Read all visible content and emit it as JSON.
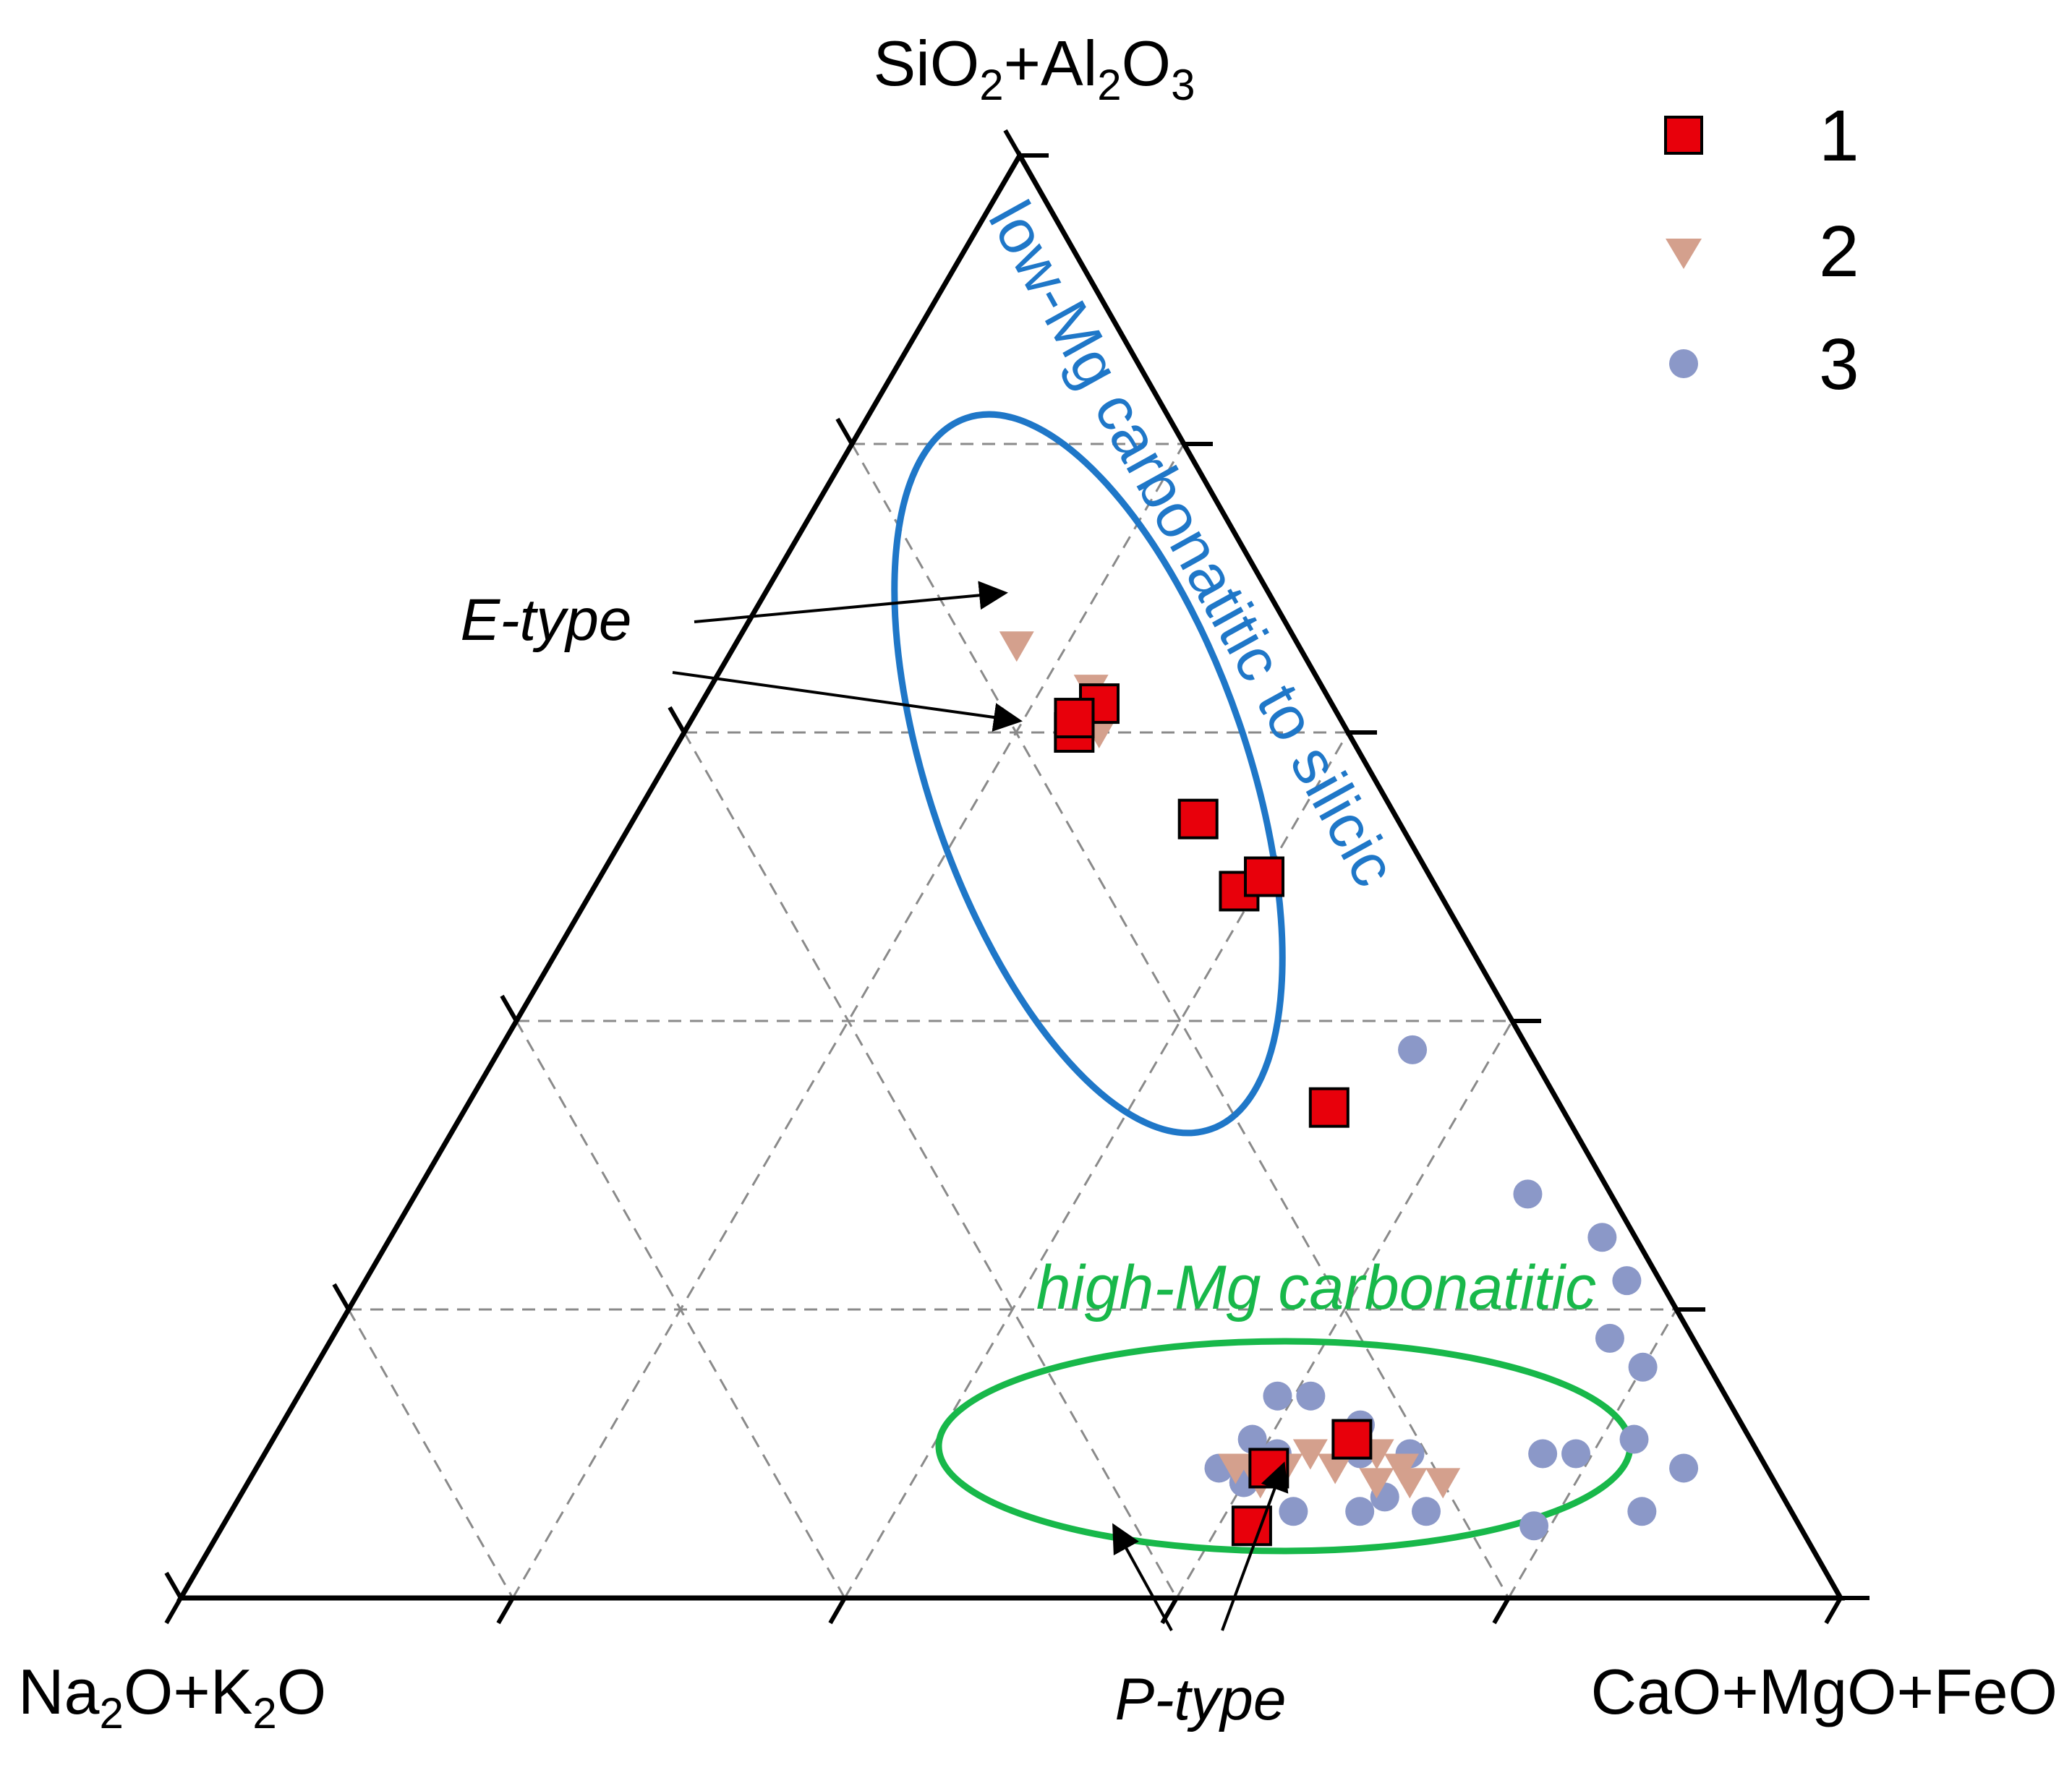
{
  "chart_data": {
    "type": "scatter",
    "subtype": "ternary",
    "apex_labels": {
      "top": {
        "main": "SiO",
        "sub1": "2",
        "mid": "+Al",
        "sub2": "2",
        "mid2": "O",
        "sub3": "3"
      },
      "left": {
        "main": "Na",
        "sub1": "2",
        "mid": "O+K",
        "sub2": "2",
        "mid2": "O"
      },
      "right": {
        "main": "CaO+MgO+FeO"
      }
    },
    "grid": "dashed, 20% steps",
    "legend_position": "top-right",
    "series": [
      {
        "name": "1",
        "marker": "square",
        "color": "#e8000b",
        "points": [
          [
            0.14,
            0.62,
            0.24
          ],
          [
            0.165,
            0.6,
            0.235
          ],
          [
            0.16,
            0.61,
            0.23
          ],
          [
            0.12,
            0.54,
            0.34
          ],
          [
            0.12,
            0.49,
            0.39
          ],
          [
            0.1,
            0.5,
            0.4
          ],
          [
            0.14,
            0.34,
            0.52
          ],
          [
            0.33,
            0.05,
            0.62
          ],
          [
            0.3,
            0.09,
            0.61
          ],
          [
            0.24,
            0.11,
            0.65
          ]
        ]
      },
      {
        "name": "2",
        "marker": "triangle-down",
        "color": "#d4a08d",
        "points": [
          [
            0.17,
            0.66,
            0.17
          ],
          [
            0.14,
            0.63,
            0.23
          ],
          [
            0.15,
            0.6,
            0.25
          ],
          [
            0.32,
            0.09,
            0.59
          ],
          [
            0.31,
            0.09,
            0.6
          ],
          [
            0.31,
            0.08,
            0.61
          ],
          [
            0.29,
            0.09,
            0.62
          ],
          [
            0.27,
            0.1,
            0.63
          ],
          [
            0.26,
            0.09,
            0.65
          ],
          [
            0.24,
            0.08,
            0.68
          ],
          [
            0.23,
            0.1,
            0.67
          ],
          [
            0.22,
            0.09,
            0.69
          ],
          [
            0.22,
            0.08,
            0.7
          ],
          [
            0.2,
            0.08,
            0.72
          ]
        ]
      },
      {
        "name": "3",
        "marker": "circle",
        "color": "#8b98c8",
        "points": [
          [
            0.07,
            0.38,
            0.55
          ],
          [
            0.05,
            0.28,
            0.67
          ],
          [
            0.02,
            0.22,
            0.76
          ],
          [
            0.02,
            0.25,
            0.73
          ],
          [
            0.05,
            0.18,
            0.77
          ],
          [
            0.04,
            0.16,
            0.8
          ],
          [
            0.3,
            0.11,
            0.59
          ],
          [
            0.33,
            0.09,
            0.58
          ],
          [
            0.32,
            0.08,
            0.6
          ],
          [
            0.33,
            0.05,
            0.62
          ],
          [
            0.3,
            0.06,
            0.64
          ],
          [
            0.32,
            0.08,
            0.6
          ],
          [
            0.29,
            0.1,
            0.61
          ],
          [
            0.25,
            0.14,
            0.61
          ],
          [
            0.23,
            0.12,
            0.65
          ],
          [
            0.24,
            0.1,
            0.66
          ],
          [
            0.24,
            0.07,
            0.69
          ],
          [
            0.22,
            0.06,
            0.72
          ],
          [
            0.26,
            0.06,
            0.68
          ],
          [
            0.21,
            0.1,
            0.69
          ],
          [
            0.16,
            0.05,
            0.79
          ],
          [
            0.13,
            0.1,
            0.77
          ],
          [
            0.11,
            0.1,
            0.79
          ],
          [
            0.09,
            0.06,
            0.85
          ],
          [
            0.07,
            0.11,
            0.82
          ],
          [
            0.05,
            0.09,
            0.86
          ],
          [
            0.27,
            0.14,
            0.59
          ]
        ]
      }
    ],
    "field_labels": [
      {
        "text": "low-Mg carbonatitic to silicic",
        "color": "#1f77c8"
      },
      {
        "text": "high-Mg carbonatitic",
        "color": "#18b84a"
      }
    ],
    "annotations": [
      {
        "text": "E-type"
      },
      {
        "text": "P-type"
      }
    ],
    "legend": [
      "1",
      "2",
      "3"
    ]
  }
}
